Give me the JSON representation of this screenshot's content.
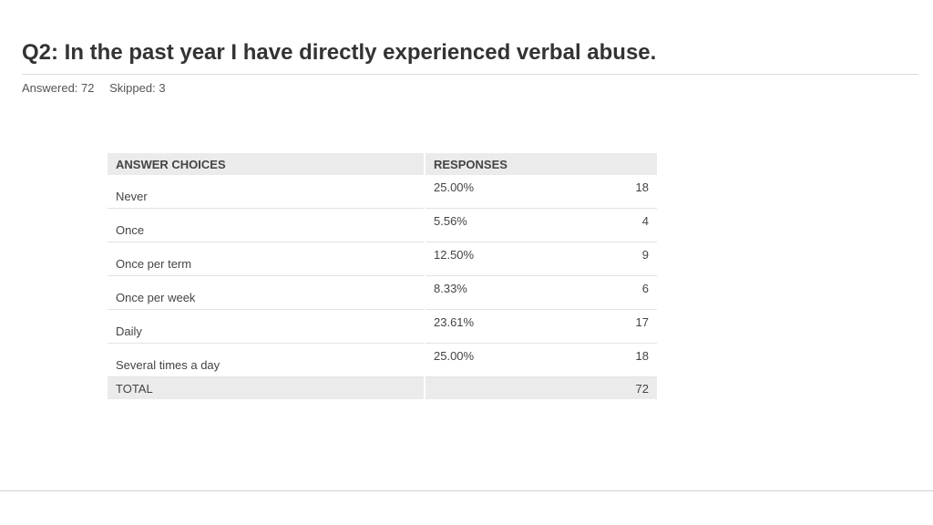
{
  "question": {
    "title": "Q2: In the past year I have directly experienced verbal abuse."
  },
  "stats": {
    "answered": "Answered: 72",
    "skipped": "Skipped: 3"
  },
  "table": {
    "headers": {
      "choices": "ANSWER CHOICES",
      "responses": "RESPONSES"
    },
    "rows": [
      {
        "choice": "Never",
        "percent": "25.00%",
        "count": "18"
      },
      {
        "choice": "Once",
        "percent": "5.56%",
        "count": "4"
      },
      {
        "choice": "Once per term",
        "percent": "12.50%",
        "count": "9"
      },
      {
        "choice": "Once per week",
        "percent": "8.33%",
        "count": "6"
      },
      {
        "choice": "Daily",
        "percent": "23.61%",
        "count": "17"
      },
      {
        "choice": "Several times a day",
        "percent": "25.00%",
        "count": "18"
      }
    ],
    "total": {
      "label": "TOTAL",
      "count": "72"
    }
  },
  "colors": {
    "header_background": "#ebebeb",
    "text": "#444444",
    "title": "#333333"
  }
}
